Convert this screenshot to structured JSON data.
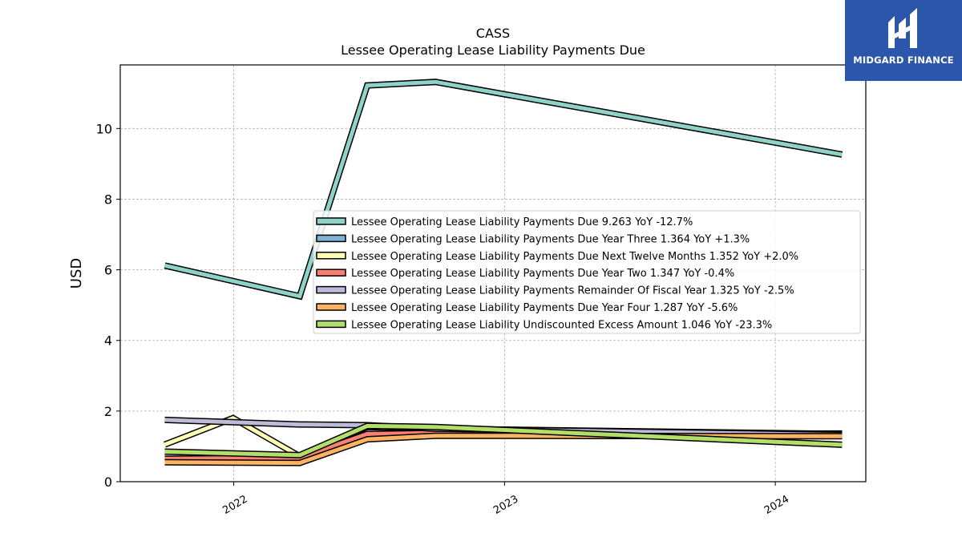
{
  "chart_data": {
    "type": "line",
    "title": "CASS",
    "subtitle": "Lessee Operating Lease Liability Payments Due",
    "xlabel": "",
    "ylabel": "USD",
    "ylim": [
      0,
      11.8
    ],
    "yticks": [
      0,
      2,
      4,
      6,
      8,
      10
    ],
    "xticks": [
      "2022",
      "2023",
      "2024"
    ],
    "grid": true,
    "legend_position": "center-right",
    "x": [
      "2021-09-30",
      "2022-03-31",
      "2022-06-30",
      "2022-09-30",
      "2024-03-31"
    ],
    "series": [
      {
        "name": "Lessee Operating Lease Liability Payments Due",
        "legend": "Lessee Operating Lease Liability Payments Due  9.263 YoY -12.7%",
        "color": "#8dd3c7",
        "values": [
          6.12,
          5.25,
          11.22,
          11.32,
          9.263
        ]
      },
      {
        "name": "Lessee Operating Lease Liability Payments Due Year Three",
        "legend": "Lessee Operating Lease Liability Payments Due Year Three  1.364 YoY +1.3%",
        "color": "#80b1d3",
        "values": [
          0.6,
          0.7,
          1.3,
          1.35,
          1.364
        ]
      },
      {
        "name": "Lessee Operating Lease Liability Payments Due Next Twelve Months",
        "legend": "Lessee Operating Lease Liability Payments Due Next Twelve Months  1.352 YoY +2.0%",
        "color": "#ffffb3",
        "values": [
          1.05,
          0.72,
          1.55,
          1.5,
          1.352
        ]
      },
      {
        "name": "Lessee Operating Lease Liability Payments Due Year Two",
        "legend": "Lessee Operating Lease Liability Payments Due Year Two  1.347 YoY -0.4%",
        "color": "#fb8072",
        "values": [
          0.65,
          0.68,
          1.35,
          1.38,
          1.347
        ]
      },
      {
        "name": "Lessee Operating Lease Liability Payments Remainder Of Fiscal Year",
        "legend": "Lessee Operating Lease Liability Payments Remainder Of Fiscal Year  1.325 YoY -2.5%",
        "color": "#bebada",
        "values": [
          1.75,
          1.62,
          1.6,
          1.5,
          1.325
        ]
      },
      {
        "name": "Lessee Operating Lease Liability Payments Due Year Four",
        "legend": "Lessee Operating Lease Liability Payments Due Year Four  1.287 YoY -5.6%",
        "color": "#fdb462",
        "values": [
          0.55,
          0.53,
          1.2,
          1.3,
          1.287
        ]
      },
      {
        "name": "Lessee Operating Lease Liability Undiscounted Excess Amount",
        "legend": "Lessee Operating Lease Liability Undiscounted Excess Amount  1.046 YoY -23.3%",
        "color": "#b3de69",
        "values": [
          0.85,
          0.75,
          1.58,
          1.55,
          1.046
        ]
      }
    ],
    "extra_points": {
      "Lessee Operating Lease Liability Payments Due Next Twelve Months": {
        "x": "2021-12-31",
        "value": 1.8
      }
    }
  },
  "logo": {
    "text": "MIDGARD FINANCE"
  }
}
